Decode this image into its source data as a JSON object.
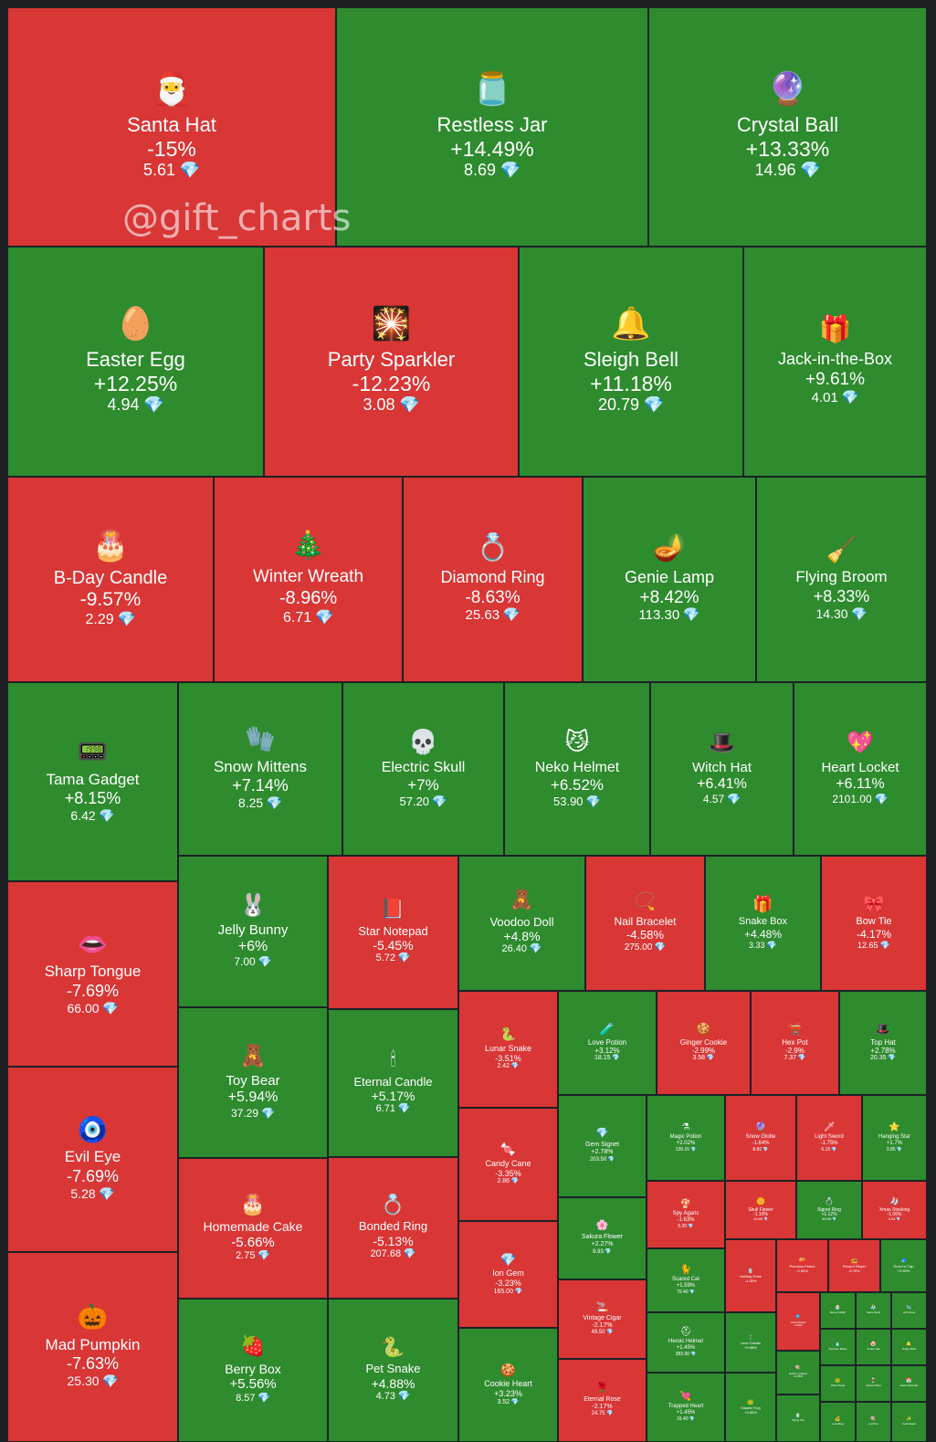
{
  "watermark": "@gift_charts",
  "colors": {
    "up": "#2e8b2e",
    "down": "#d93636",
    "gem": "#bff0ff"
  },
  "chart_data": {
    "type": "treemap",
    "value_unit": "TON",
    "items": [
      {
        "name": "Santa Hat",
        "change": "-15%",
        "price": "5.61",
        "icon": "🎅"
      },
      {
        "name": "Restless Jar",
        "change": "+14.49%",
        "price": "8.69",
        "icon": "🫙"
      },
      {
        "name": "Crystal Ball",
        "change": "+13.33%",
        "price": "14.96",
        "icon": "🔮"
      },
      {
        "name": "Easter Egg",
        "change": "+12.25%",
        "price": "4.94",
        "icon": "🥚"
      },
      {
        "name": "Party Sparkler",
        "change": "-12.23%",
        "price": "3.08",
        "icon": "🎇"
      },
      {
        "name": "Sleigh Bell",
        "change": "+11.18%",
        "price": "20.79",
        "icon": "🔔"
      },
      {
        "name": "Jack-in-the-Box",
        "change": "+9.61%",
        "price": "4.01",
        "icon": "🎁"
      },
      {
        "name": "B-Day Candle",
        "change": "-9.57%",
        "price": "2.29",
        "icon": "🎂"
      },
      {
        "name": "Winter Wreath",
        "change": "-8.96%",
        "price": "6.71",
        "icon": "🎄"
      },
      {
        "name": "Diamond Ring",
        "change": "-8.63%",
        "price": "25.63",
        "icon": "💍"
      },
      {
        "name": "Genie Lamp",
        "change": "+8.42%",
        "price": "113.30",
        "icon": "🪔"
      },
      {
        "name": "Flying Broom",
        "change": "+8.33%",
        "price": "14.30",
        "icon": "🧹"
      },
      {
        "name": "Tama Gadget",
        "change": "+8.15%",
        "price": "6.42",
        "icon": "📟"
      },
      {
        "name": "Snow Mittens",
        "change": "+7.14%",
        "price": "8.25",
        "icon": "🧤"
      },
      {
        "name": "Electric Skull",
        "change": "+7%",
        "price": "57.20",
        "icon": "💀"
      },
      {
        "name": "Neko Helmet",
        "change": "+6.52%",
        "price": "53.90",
        "icon": "😼"
      },
      {
        "name": "Witch Hat",
        "change": "+6.41%",
        "price": "4.57",
        "icon": "🎩"
      },
      {
        "name": "Heart Locket",
        "change": "+6.11%",
        "price": "2101.00",
        "icon": "💖"
      },
      {
        "name": "Sharp Tongue",
        "change": "-7.69%",
        "price": "66.00",
        "icon": "👄"
      },
      {
        "name": "Jelly Bunny",
        "change": "+6%",
        "price": "7.00",
        "icon": "🐰"
      },
      {
        "name": "Star Notepad",
        "change": "-5.45%",
        "price": "5.72",
        "icon": "📕"
      },
      {
        "name": "Voodoo Doll",
        "change": "+4.8%",
        "price": "26.40",
        "icon": "🧸"
      },
      {
        "name": "Nail Bracelet",
        "change": "-4.58%",
        "price": "275.00",
        "icon": "📿"
      },
      {
        "name": "Snake Box",
        "change": "+4.48%",
        "price": "3.33",
        "icon": "🎁"
      },
      {
        "name": "Bow Tie",
        "change": "-4.17%",
        "price": "12.65",
        "icon": "🎀"
      },
      {
        "name": "Evil Eye",
        "change": "-7.69%",
        "price": "5.28",
        "icon": "🧿"
      },
      {
        "name": "Toy Bear",
        "change": "+5.94%",
        "price": "37.29",
        "icon": "🧸"
      },
      {
        "name": "Eternal Candle",
        "change": "+5.17%",
        "price": "6.71",
        "icon": "🕯"
      },
      {
        "name": "Lunar Snake",
        "change": "-3.51%",
        "price": "2.42",
        "icon": "🐍"
      },
      {
        "name": "Love Potion",
        "change": "+3.12%",
        "price": "18.15",
        "icon": "🧪"
      },
      {
        "name": "Ginger Cookie",
        "change": "-2.99%",
        "price": "3.58",
        "icon": "🍪"
      },
      {
        "name": "Hex Pot",
        "change": "-2.9%",
        "price": "7.37",
        "icon": "🫕"
      },
      {
        "name": "Top Hat",
        "change": "+2.78%",
        "price": "20.35",
        "icon": "🎩"
      },
      {
        "name": "Mad Pumpkin",
        "change": "-7.63%",
        "price": "25.30",
        "icon": "🎃"
      },
      {
        "name": "Homemade Cake",
        "change": "-5.66%",
        "price": "2.75",
        "icon": "🎂"
      },
      {
        "name": "Bonded Ring",
        "change": "-5.13%",
        "price": "207.68",
        "icon": "💍"
      },
      {
        "name": "Candy Cane",
        "change": "-3.35%",
        "price": "2.86",
        "icon": "🍬"
      },
      {
        "name": "Gem Signet",
        "change": "+2.78%",
        "price": "203.50",
        "icon": "💎"
      },
      {
        "name": "Magic Potion",
        "change": "+2.02%",
        "price": "139.15",
        "icon": "⚗"
      },
      {
        "name": "Snow Globe",
        "change": "-1.64%",
        "price": "8.80",
        "icon": "🔮"
      },
      {
        "name": "Light Sword",
        "change": "-1.75%",
        "price": "6.16",
        "icon": "🗡"
      },
      {
        "name": "Hanging Star",
        "change": "+1.7%",
        "price": "9.85",
        "icon": "⭐"
      },
      {
        "name": "Berry Box",
        "change": "+5.56%",
        "price": "8.57",
        "icon": "🍓"
      },
      {
        "name": "Pet Snake",
        "change": "+4.88%",
        "price": "4.73",
        "icon": "🐍"
      },
      {
        "name": "Ion Gem",
        "change": "-3.23%",
        "price": "165.00",
        "icon": "💎"
      },
      {
        "name": "Sakura Flower",
        "change": "+2.27%",
        "price": "8.93",
        "icon": "🌸"
      },
      {
        "name": "Spy Agaric",
        "change": "-1.63%",
        "price": "5.30",
        "icon": "🍄"
      },
      {
        "name": "Skull Flower",
        "change": "-1.10%",
        "price": "15.85",
        "icon": "🌼"
      },
      {
        "name": "Signet Ring",
        "change": "+1.12%",
        "price": "49.55",
        "icon": "💍"
      },
      {
        "name": "Xmas Stocking",
        "change": "-1.06%",
        "price": "3.04",
        "icon": "🧦"
      },
      {
        "name": "Cookie Heart",
        "change": "+3.23%",
        "price": "3.52",
        "icon": "🍪"
      },
      {
        "name": "Vintage Cigar",
        "change": "-2.17%",
        "price": "49.50",
        "icon": "🚬"
      },
      {
        "name": "Scared Cat",
        "change": "+1.59%",
        "price": "70.40",
        "icon": "🐈"
      },
      {
        "name": "Heroic Helmet",
        "change": "+1.45%",
        "price": "383.90",
        "icon": "⛑"
      },
      {
        "name": "Eternal Rose",
        "change": "-2.17%",
        "price": "24.75",
        "icon": "🌹"
      },
      {
        "name": "Trapped Heart",
        "change": "+1.45%",
        "price": "15.40",
        "icon": "💘"
      },
      {
        "name": "Holiday Drink",
        "change": "-1.05%",
        "price": "",
        "icon": "🥤"
      },
      {
        "name": "Love Candle",
        "change": "+0.98%",
        "price": "",
        "icon": "🕯"
      },
      {
        "name": "Kissed Frog",
        "change": "+0.85%",
        "price": "",
        "icon": "🐸"
      },
      {
        "name": "Precious Peach",
        "change": "-0.83%",
        "price": "",
        "icon": "🍑"
      },
      {
        "name": "Record Player",
        "change": "-0.76%",
        "price": "",
        "icon": "📻"
      },
      {
        "name": "Durov's Cap",
        "change": "+0.65%",
        "price": "",
        "icon": "🧢"
      },
      {
        "name": "Astral Shard",
        "change": "-0.63%",
        "price": "",
        "icon": "💠"
      },
      {
        "name": "Hypno Lollipop",
        "change": "+0.55%",
        "price": "",
        "icon": "🍭"
      },
      {
        "name": "Flying Tea",
        "change": "",
        "price": "",
        "icon": "🍵"
      },
      {
        "name": "Bunny Muffin",
        "change": "",
        "price": "",
        "icon": "🧁"
      },
      {
        "name": "Santa Sock",
        "change": "",
        "price": "",
        "icon": "🧦"
      },
      {
        "name": "Hot Glove",
        "change": "",
        "price": "",
        "icon": "🧤"
      },
      {
        "name": "Perfume Bottle",
        "change": "",
        "price": "",
        "icon": "🧴"
      },
      {
        "name": "Jester Hat",
        "change": "",
        "price": "",
        "icon": "🤡"
      },
      {
        "name": "Jingle Bells",
        "change": "",
        "price": "",
        "icon": "🔔"
      },
      {
        "name": "Plush Pepe",
        "change": "",
        "price": "",
        "icon": "🐸"
      },
      {
        "name": "Spiced Wine",
        "change": "",
        "price": "",
        "icon": "🍷"
      },
      {
        "name": "Desk Calendar",
        "change": "",
        "price": "",
        "icon": "📅"
      },
      {
        "name": "Loot Bag",
        "change": "",
        "price": "",
        "icon": "💰"
      },
      {
        "name": "Lol Pop",
        "change": "",
        "price": "",
        "icon": "🍭"
      },
      {
        "name": "Cold Spark",
        "change": "",
        "price": "",
        "icon": "✨"
      }
    ]
  }
}
